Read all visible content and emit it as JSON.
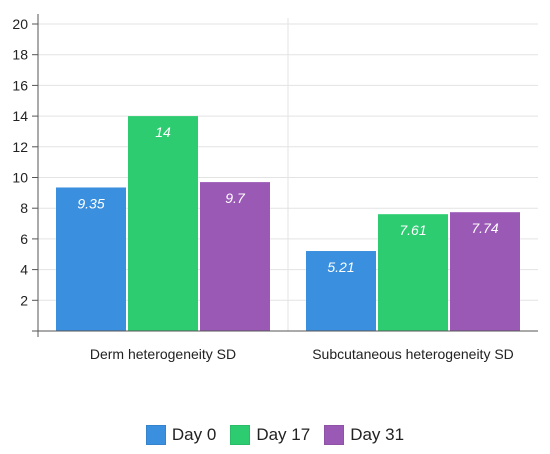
{
  "chart_data": {
    "type": "bar",
    "categories": [
      "Derm heterogeneity SD",
      "Subcutaneous heterogeneity SD"
    ],
    "series": [
      {
        "name": "Day 0",
        "color": "#3a8fde",
        "values": [
          9.35,
          5.21
        ]
      },
      {
        "name": "Day 17",
        "color": "#2ecc71",
        "values": [
          14,
          7.61
        ]
      },
      {
        "name": "Day 31",
        "color": "#9b59b6",
        "values": [
          9.7,
          7.74
        ]
      }
    ],
    "title": "",
    "xlabel": "",
    "ylabel": "",
    "ylim": [
      0,
      20
    ],
    "yticks": [
      2,
      4,
      6,
      8,
      10,
      12,
      14,
      16,
      18,
      20
    ],
    "grid": true,
    "legend_position": "bottom"
  }
}
